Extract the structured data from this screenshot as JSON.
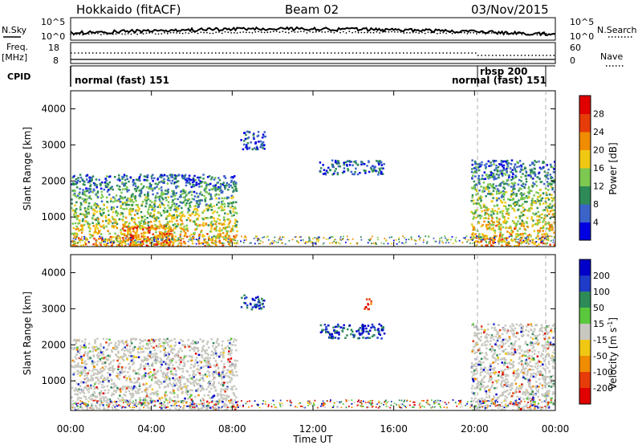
{
  "header": {
    "title": "Hokkaido (fitACF)",
    "beam": "Beam 02",
    "date": "03/Nov/2015"
  },
  "noise_panel": {
    "left_label": "N.Sky",
    "right_label": "N.Search",
    "left_ticks": [
      "10^5",
      "10^0"
    ],
    "right_ticks": [
      "10^5",
      "10^0"
    ]
  },
  "freq_panel": {
    "left_label_1": "Freq.",
    "left_label_2": "[MHz]",
    "left_ticks": [
      "18",
      "8"
    ],
    "right_label": "Nave",
    "right_ticks": [
      "60",
      "0"
    ]
  },
  "cpid_panel": {
    "label": "CPID",
    "modes": [
      "normal (fast) 151",
      "rbsp 200",
      "normal (fast) 151"
    ]
  },
  "chart_data": [
    {
      "type": "heatmap",
      "name": "power",
      "xlabel": "",
      "ylabel": "Slant Range [km]",
      "x_range_hours": [
        0,
        24
      ],
      "ylim": [
        180,
        4500
      ],
      "y_ticks": [
        "1000",
        "2000",
        "3000",
        "4000"
      ],
      "colorbar": {
        "label": "Power [dB]",
        "tick_labels": [
          "4",
          "8",
          "12",
          "16",
          "20",
          "24",
          "28"
        ],
        "colors": [
          "#0000e0",
          "#3c64c8",
          "#2e8b57",
          "#7cc850",
          "#f0c814",
          "#f08c00",
          "#e63c0a",
          "#e00000"
        ]
      },
      "echo_regions": [
        {
          "t_start": 0.0,
          "t_end": 8.2,
          "r_low": 180,
          "r_high": 2200,
          "level": "mixed"
        },
        {
          "t_start": 2.5,
          "t_end": 5.0,
          "r_low": 200,
          "r_high": 800,
          "level": "high"
        },
        {
          "t_start": 8.4,
          "t_end": 9.6,
          "r_low": 2900,
          "r_high": 3400,
          "level": "low"
        },
        {
          "t_start": 12.3,
          "t_end": 15.5,
          "r_low": 2200,
          "r_high": 2600,
          "level": "low"
        },
        {
          "t_start": 19.8,
          "t_end": 24.0,
          "r_low": 200,
          "r_high": 2600,
          "level": "mixed"
        }
      ]
    },
    {
      "type": "heatmap",
      "name": "velocity",
      "xlabel": "Time UT",
      "ylabel": "Slant Range [km]",
      "x_range_hours": [
        0,
        24
      ],
      "x_ticks": [
        "00:00",
        "04:00",
        "08:00",
        "12:00",
        "16:00",
        "20:00",
        "00:00"
      ],
      "ylim": [
        180,
        4500
      ],
      "y_ticks": [
        "1000",
        "2000",
        "3000",
        "4000"
      ],
      "colorbar": {
        "label_main": "Velocity",
        "label_units": "[m s",
        "label_exp": "-1",
        "label_end": "]",
        "tick_labels": [
          "200",
          "100",
          "50",
          "15",
          "-15",
          "-50",
          "-100",
          "-200"
        ],
        "colors": [
          "#0000c8",
          "#1e3cc8",
          "#2e8b57",
          "#5ac83c",
          "#c8c8c0",
          "#f0c814",
          "#f08c00",
          "#e63c0a",
          "#e00000"
        ]
      },
      "echo_regions": [
        {
          "t_start": 0.0,
          "t_end": 8.2,
          "r_low": 180,
          "r_high": 2200,
          "level": "near-zero"
        },
        {
          "t_start": 8.4,
          "t_end": 9.6,
          "r_low": 3000,
          "r_high": 3400,
          "level": "positive"
        },
        {
          "t_start": 12.3,
          "t_end": 15.5,
          "r_low": 2200,
          "r_high": 2600,
          "level": "positive"
        },
        {
          "t_start": 14.5,
          "t_end": 14.9,
          "r_low": 3000,
          "r_high": 3300,
          "level": "negative"
        },
        {
          "t_start": 19.8,
          "t_end": 24.0,
          "r_low": 200,
          "r_high": 2600,
          "level": "near-zero"
        }
      ]
    }
  ]
}
